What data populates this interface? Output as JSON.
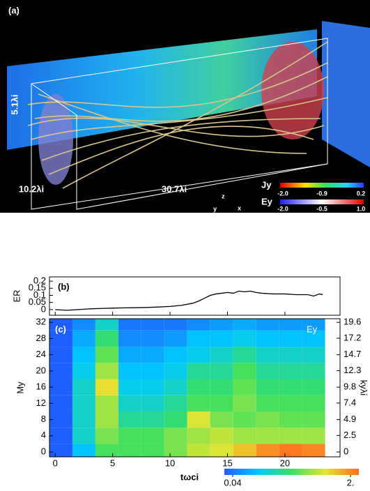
{
  "panel_a": {
    "label": "(a)",
    "dims": [
      "5.1λi",
      "10.2λi",
      "30.7λi"
    ],
    "axes": [
      "z",
      "y",
      "x"
    ],
    "colorbars": [
      {
        "name": "Jy",
        "ticks": [
          "-2.0",
          "-0.9",
          "0.2"
        ]
      },
      {
        "name": "Ey",
        "ticks": [
          "-2.0",
          "-0.5",
          "1.0"
        ]
      }
    ]
  },
  "chart_data": [
    {
      "type": "line",
      "label": "(b)",
      "ylabel": "ER",
      "color": "#000000",
      "x": [
        0,
        1,
        2,
        3,
        4,
        5,
        6,
        7,
        8,
        9,
        10,
        11,
        12,
        12.5,
        13,
        13.5,
        14,
        14.5,
        15,
        15.5,
        16,
        16.5,
        17,
        17.5,
        18,
        19,
        20,
        21,
        22,
        22.5,
        23,
        23.3
      ],
      "values": [
        0,
        -0.005,
        0,
        0.005,
        0.008,
        0.01,
        0.012,
        0.013,
        0.015,
        0.018,
        0.022,
        0.03,
        0.045,
        0.06,
        0.08,
        0.1,
        0.11,
        0.115,
        0.12,
        0.115,
        0.13,
        0.125,
        0.13,
        0.12,
        0.115,
        0.11,
        0.11,
        0.105,
        0.105,
        0.095,
        0.11,
        0.105
      ],
      "xlim": [
        -0.5,
        24.8
      ],
      "xticks": [
        0,
        5,
        10,
        15,
        20
      ],
      "ylim": [
        -0.04,
        0.23
      ],
      "yticks": [
        0,
        0.05,
        0.1,
        0.15,
        0.2
      ]
    },
    {
      "type": "heatmap",
      "label": "(c)",
      "annotation": "Ey",
      "xlabel": "tωci",
      "ylabel": "My",
      "y2label": "kyλi",
      "xlim": [
        -0.5,
        24.8
      ],
      "xticks": [
        0,
        5,
        10,
        15,
        20
      ],
      "ylim": [
        -1.2,
        32.9
      ],
      "yticks": [
        0,
        4,
        8,
        12,
        16,
        20,
        24,
        28,
        32
      ],
      "y2lim": [
        -0.735,
        20.15
      ],
      "y2ticks": [
        0,
        2.5,
        4.9,
        7.4,
        9.8,
        12.3,
        14.7,
        17.2,
        19.6
      ],
      "x_edges": [
        -0.5,
        1.5,
        3.5,
        5.5,
        7.5,
        9.5,
        11.5,
        13.5,
        15.5,
        17.5,
        19.5,
        21.5,
        23.5
      ],
      "y_edges": [
        -1.2,
        2,
        6,
        10,
        14,
        18,
        22,
        26,
        30,
        32.9
      ],
      "z": [
        [
          0.04,
          0.1,
          0.3,
          0.3,
          0.3,
          0.4,
          0.6,
          0.7,
          1.0,
          1.5,
          1.8,
          1.6
        ],
        [
          0.04,
          0.15,
          0.4,
          0.3,
          0.3,
          0.4,
          0.5,
          0.6,
          0.5,
          0.5,
          0.5,
          0.5
        ],
        [
          0.04,
          0.15,
          0.5,
          0.2,
          0.2,
          0.25,
          0.7,
          0.4,
          0.35,
          0.4,
          0.35,
          0.35
        ],
        [
          0.04,
          0.15,
          0.5,
          0.15,
          0.15,
          0.2,
          0.3,
          0.3,
          0.4,
          0.3,
          0.3,
          0.3
        ],
        [
          0.04,
          0.15,
          0.8,
          0.12,
          0.12,
          0.15,
          0.25,
          0.25,
          0.35,
          0.25,
          0.25,
          0.25
        ],
        [
          0.04,
          0.12,
          0.5,
          0.1,
          0.1,
          0.12,
          0.2,
          0.2,
          0.3,
          0.2,
          0.2,
          0.2
        ],
        [
          0.04,
          0.1,
          0.35,
          0.08,
          0.08,
          0.1,
          0.12,
          0.15,
          0.2,
          0.15,
          0.15,
          0.15
        ],
        [
          0.04,
          0.08,
          0.25,
          0.06,
          0.06,
          0.07,
          0.1,
          0.1,
          0.12,
          0.1,
          0.1,
          0.1
        ],
        [
          0.04,
          0.06,
          0.15,
          0.05,
          0.05,
          0.05,
          0.06,
          0.07,
          0.08,
          0.07,
          0.07,
          0.07
        ]
      ],
      "zlim": [
        0.04,
        2
      ],
      "zticks": [
        0.04,
        {
          "value": 2,
          "label": "2."
        }
      ],
      "log_color": true,
      "colors": [
        "#1f5fff",
        "#00c8ff",
        "#3ce060",
        "#e6e632",
        "#ff6a1e"
      ]
    }
  ]
}
